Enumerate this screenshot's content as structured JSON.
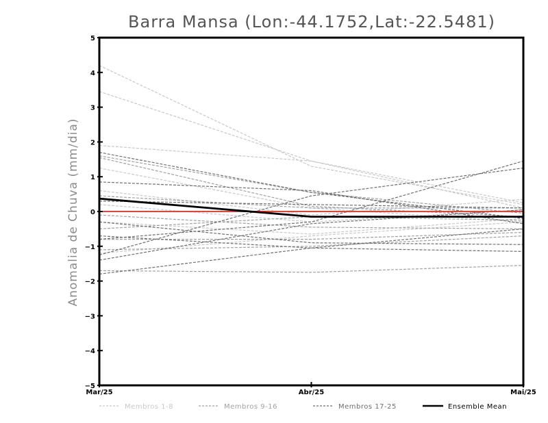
{
  "chart_data": {
    "type": "line",
    "title": "Barra Mansa (Lon:-44.1752,Lat:-22.5481)",
    "xlabel": "",
    "ylabel": "Anomalia de Chuva (mm/dia)",
    "categories": [
      "Mar/25",
      "Abr/25",
      "Mai/25"
    ],
    "ylim": [
      -5,
      5
    ],
    "yticks": [
      "5",
      "4",
      "3",
      "2",
      "1",
      "0",
      "-1",
      "-2",
      "-3",
      "-4",
      "-5"
    ],
    "grid": false,
    "legend": [
      {
        "label": "Membros 1-8",
        "color": "#c8c8c8",
        "style": "dashed"
      },
      {
        "label": "Membros 9-16",
        "color": "#a0a0a0",
        "style": "dashed"
      },
      {
        "label": "Membros 17-25",
        "color": "#6e6e6e",
        "style": "dashed"
      },
      {
        "label": "Ensemble Mean",
        "color": "#000000",
        "style": "solid"
      }
    ],
    "series": [
      {
        "name": "Membro 1",
        "group": 0,
        "values": [
          4.2,
          1.3,
          0.2
        ]
      },
      {
        "name": "Membro 2",
        "group": 0,
        "values": [
          3.45,
          1.45,
          0.25
        ]
      },
      {
        "name": "Membro 3",
        "group": 0,
        "values": [
          1.9,
          1.45,
          0.1
        ]
      },
      {
        "name": "Membro 4",
        "group": 0,
        "values": [
          1.25,
          0.1,
          -0.3
        ]
      },
      {
        "name": "Membro 5",
        "group": 0,
        "values": [
          0.6,
          -0.1,
          0.35
        ]
      },
      {
        "name": "Membro 6",
        "group": 0,
        "values": [
          0.2,
          -0.3,
          0.05
        ]
      },
      {
        "name": "Membro 7",
        "group": 0,
        "values": [
          -0.3,
          -0.65,
          -0.2
        ]
      },
      {
        "name": "Membro 8",
        "group": 0,
        "values": [
          -1.2,
          -0.7,
          -0.3
        ]
      },
      {
        "name": "Membro 9",
        "group": 1,
        "values": [
          1.55,
          0.15,
          -0.15
        ]
      },
      {
        "name": "Membro 10",
        "group": 1,
        "values": [
          1.6,
          0.55,
          -0.05
        ]
      },
      {
        "name": "Membro 11",
        "group": 1,
        "values": [
          0.45,
          0.1,
          0.1
        ]
      },
      {
        "name": "Membro 12",
        "group": 1,
        "values": [
          -0.1,
          -0.45,
          -0.5
        ]
      },
      {
        "name": "Membro 13",
        "group": 1,
        "values": [
          -0.8,
          -0.8,
          -0.6
        ]
      },
      {
        "name": "Membro 14",
        "group": 1,
        "values": [
          -1.1,
          -1.0,
          -0.7
        ]
      },
      {
        "name": "Membro 15",
        "group": 1,
        "values": [
          -1.7,
          -1.75,
          -1.55
        ]
      },
      {
        "name": "Membro 16",
        "group": 1,
        "values": [
          -0.5,
          -0.15,
          -0.25
        ]
      },
      {
        "name": "Membro 17",
        "group": 2,
        "values": [
          1.7,
          0.55,
          -0.2
        ]
      },
      {
        "name": "Membro 18",
        "group": 2,
        "values": [
          0.85,
          0.6,
          -0.35
        ]
      },
      {
        "name": "Membro 19",
        "group": 2,
        "values": [
          0.3,
          0.2,
          0.1
        ]
      },
      {
        "name": "Membro 20",
        "group": 2,
        "values": [
          -0.3,
          -0.9,
          -0.95
        ]
      },
      {
        "name": "Membro 21",
        "group": 2,
        "values": [
          -0.8,
          -0.3,
          1.45
        ]
      },
      {
        "name": "Membro 22",
        "group": 2,
        "values": [
          -1.4,
          -0.35,
          0.05
        ]
      },
      {
        "name": "Membro 23",
        "group": 2,
        "values": [
          -1.25,
          0.45,
          1.25
        ]
      },
      {
        "name": "Membro 24",
        "group": 2,
        "values": [
          -1.8,
          -1.05,
          -0.5
        ]
      },
      {
        "name": "Membro 25",
        "group": 2,
        "values": [
          -0.7,
          -1.05,
          -1.15
        ]
      }
    ],
    "ensemble_mean": {
      "name": "Ensemble Mean",
      "values": [
        0.37,
        -0.15,
        -0.15
      ]
    },
    "reference_line": {
      "value": 0,
      "color": "#e8403a"
    }
  }
}
